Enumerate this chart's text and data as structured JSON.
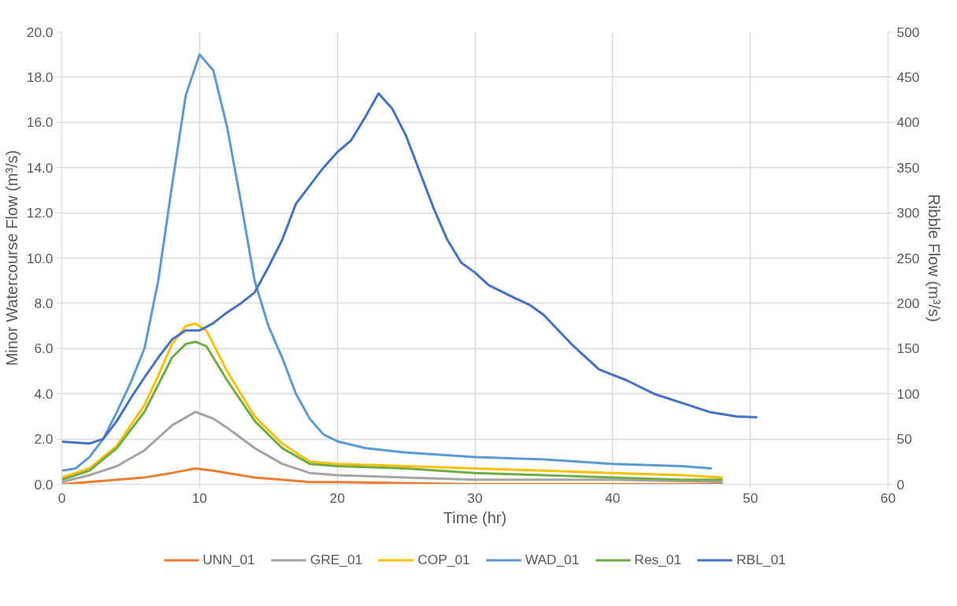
{
  "chart_data": {
    "type": "line",
    "xlabel": "Time (hr)",
    "ylabel": "Minor Watercourse Flow (m³/s)",
    "y2label": "Ribble Flow (m³/s)",
    "xlim": [
      0,
      60
    ],
    "xticks": [
      0,
      10,
      20,
      30,
      40,
      50,
      60
    ],
    "ylim": [
      0,
      20
    ],
    "yticks": [
      {
        "value": 0,
        "label": "0.0"
      },
      {
        "value": 2,
        "label": "2.0"
      },
      {
        "value": 4,
        "label": "4.0"
      },
      {
        "value": 6,
        "label": "6.0"
      },
      {
        "value": 8,
        "label": "8.0"
      },
      {
        "value": 10,
        "label": "10.0"
      },
      {
        "value": 12,
        "label": "12.0"
      },
      {
        "value": 14,
        "label": "14.0"
      },
      {
        "value": 16,
        "label": "16.0"
      },
      {
        "value": 18,
        "label": "18.0"
      },
      {
        "value": 20,
        "label": "20.0"
      }
    ],
    "y2lim": [
      0,
      500
    ],
    "y2ticks": [
      0,
      50,
      100,
      150,
      200,
      250,
      300,
      350,
      400,
      450,
      500
    ],
    "grid": true,
    "legend": "bottom",
    "marker": "none",
    "line_style": "solid",
    "series": [
      {
        "name": "UNN_01",
        "color": "#ed7d31",
        "x": [
          0,
          4,
          6,
          8,
          9.7,
          11,
          12,
          14,
          16,
          18,
          20,
          30,
          48
        ],
        "values": [
          0.0,
          0.2,
          0.3,
          0.5,
          0.7,
          0.6,
          0.5,
          0.3,
          0.2,
          0.1,
          0.1,
          0.0,
          0.0
        ]
      },
      {
        "name": "GRE_01",
        "color": "#a5a5a5",
        "x": [
          0,
          2,
          4,
          6,
          8,
          9.7,
          11,
          12,
          14,
          16,
          18,
          20,
          25,
          30,
          40,
          48
        ],
        "values": [
          0.1,
          0.4,
          0.8,
          1.5,
          2.6,
          3.2,
          2.9,
          2.5,
          1.6,
          0.9,
          0.5,
          0.4,
          0.3,
          0.2,
          0.2,
          0.1
        ]
      },
      {
        "name": "COP_01",
        "color": "#ffc000",
        "x": [
          0,
          2,
          4,
          6,
          7,
          8,
          9,
          9.7,
          10.5,
          12,
          14,
          16,
          18,
          20,
          25,
          30,
          35,
          40,
          45,
          48
        ],
        "values": [
          0.3,
          0.7,
          1.7,
          3.5,
          4.8,
          6.2,
          7.0,
          7.1,
          6.8,
          5.0,
          3.0,
          1.8,
          1.0,
          0.9,
          0.8,
          0.7,
          0.6,
          0.5,
          0.4,
          0.3
        ]
      },
      {
        "name": "WAD_01",
        "color": "#5b9bd5",
        "x": [
          0,
          1,
          2,
          3,
          4,
          5,
          6,
          7,
          8,
          9,
          10,
          11,
          12,
          13,
          14,
          15,
          16,
          17,
          18,
          19,
          20,
          22,
          25,
          30,
          35,
          40,
          45,
          47.2
        ],
        "values": [
          0.6,
          0.7,
          1.2,
          2.0,
          3.2,
          4.5,
          6.0,
          9.0,
          13.2,
          17.2,
          19.0,
          18.3,
          15.8,
          12.5,
          9.0,
          7.0,
          5.6,
          4.0,
          2.9,
          2.2,
          1.9,
          1.6,
          1.4,
          1.2,
          1.1,
          0.9,
          0.8,
          0.7
        ]
      },
      {
        "name": "Res_01",
        "color": "#70ad47",
        "x": [
          0,
          2,
          4,
          6,
          7,
          8,
          9,
          9.7,
          10.5,
          12,
          14,
          16,
          18,
          20,
          25,
          30,
          35,
          40,
          45,
          48
        ],
        "values": [
          0.2,
          0.6,
          1.6,
          3.2,
          4.4,
          5.6,
          6.2,
          6.3,
          6.1,
          4.6,
          2.8,
          1.6,
          0.9,
          0.8,
          0.7,
          0.5,
          0.4,
          0.3,
          0.2,
          0.2
        ]
      },
      {
        "name": "RBL_01",
        "color": "#4472c4",
        "axis": "y2",
        "x": [
          0,
          2,
          3,
          4,
          5,
          6,
          7,
          8,
          9,
          10,
          11,
          12,
          13,
          14,
          15,
          16,
          17,
          18,
          19,
          20,
          21,
          22,
          23,
          24,
          25,
          26,
          27,
          28,
          29,
          30,
          31,
          33,
          34,
          35,
          37,
          39,
          41,
          43,
          45,
          47,
          49,
          50.5
        ],
        "values": [
          47,
          45,
          50,
          70,
          95,
          118,
          140,
          160,
          170,
          170,
          178,
          190,
          200,
          212,
          240,
          270,
          310,
          330,
          350,
          367,
          380,
          405,
          432,
          415,
          385,
          345,
          305,
          270,
          245,
          234,
          220,
          205,
          198,
          187,
          155,
          127,
          115,
          100,
          90,
          80,
          75,
          74
        ]
      }
    ]
  }
}
